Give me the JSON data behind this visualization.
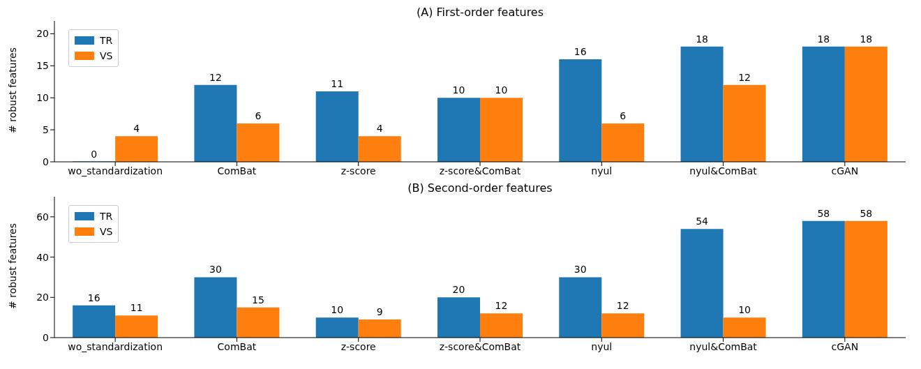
{
  "chart_data": [
    {
      "type": "bar",
      "title": "(A) First-order features",
      "ylabel": "# robust features",
      "categories": [
        "wo_standardization",
        "ComBat",
        "z-score",
        "z-score&ComBat",
        "nyul",
        "nyul&ComBat",
        "cGAN"
      ],
      "series": [
        {
          "name": "TR",
          "color": "#1f77b4",
          "values": [
            0,
            12,
            11,
            10,
            16,
            18,
            18
          ]
        },
        {
          "name": "VS",
          "color": "#ff7f0e",
          "values": [
            4,
            6,
            4,
            10,
            6,
            12,
            18
          ]
        }
      ],
      "ylim": [
        0,
        22
      ],
      "yticks": [
        0,
        5,
        10,
        15,
        20
      ],
      "grid": false,
      "legend": "top left",
      "data_labels": true
    },
    {
      "type": "bar",
      "title": "(B) Second-order features",
      "ylabel": "# robust features",
      "categories": [
        "wo_standardization",
        "ComBat",
        "z-score",
        "z-score&ComBat",
        "nyul",
        "nyul&ComBat",
        "cGAN"
      ],
      "series": [
        {
          "name": "TR",
          "color": "#1f77b4",
          "values": [
            16,
            30,
            10,
            20,
            30,
            54,
            58
          ]
        },
        {
          "name": "VS",
          "color": "#ff7f0e",
          "values": [
            11,
            15,
            9,
            12,
            12,
            10,
            58
          ]
        }
      ],
      "ylim": [
        0,
        70
      ],
      "yticks": [
        0,
        20,
        40,
        60
      ],
      "grid": false,
      "legend": "top left",
      "data_labels": true
    }
  ]
}
